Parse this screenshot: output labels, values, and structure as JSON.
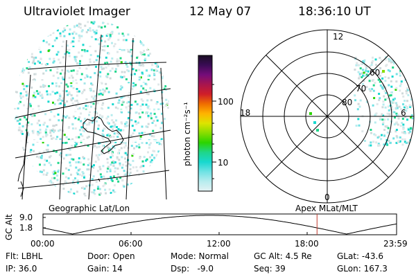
{
  "header": {
    "instrument": "Ultraviolet Imager",
    "date": "12 May 07",
    "time": "18:36:10 UT"
  },
  "colorbar": {
    "unit_label": "photon cm⁻²s⁻¹",
    "ticks": [
      "100",
      "10"
    ],
    "colors": [
      "#1a0f24",
      "#3a0c55",
      "#750c7a",
      "#a8154e",
      "#d01e28",
      "#ef6d00",
      "#ffb300",
      "#dde400",
      "#88dd00",
      "#2bd400",
      "#1fd68a",
      "#18d8cf",
      "#6fe2e4",
      "#b7ecee",
      "#e4f2f4"
    ]
  },
  "geo_panel": {
    "caption": "Geographic Lat/Lon"
  },
  "polar_panel": {
    "caption": "Apex MLat/MLT",
    "mlt_labels": [
      "12",
      "18",
      "6",
      "0"
    ],
    "lat_labels": [
      "60",
      "70",
      "80"
    ]
  },
  "altitude_plot": {
    "ylabel": "GC Alt",
    "y_ticks": [
      "9.0",
      "1.8"
    ],
    "x_ticks": [
      "00:00",
      "06:00",
      "12:00",
      "18:00",
      "23:59"
    ],
    "current_time_hours": 18.6
  },
  "status": {
    "filter": "Flt: LBHL",
    "ip": "IP: 36.0",
    "door": "Door: Open",
    "gain": "Gain: 14",
    "mode": "Mode: Normal",
    "dsp": "Dsp:   -9.0",
    "gc_alt": "GC Alt: 4.5 Re",
    "seq": "Seq: 39",
    "glat": "GLat: -43.6",
    "glon": "GLon: 167.3"
  }
}
